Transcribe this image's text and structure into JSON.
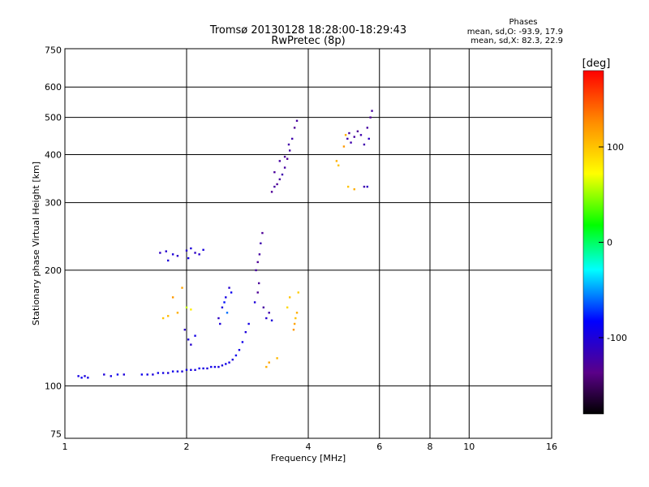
{
  "chart_data": {
    "type": "scatter",
    "title": "Tromsø 20130128 18:28:00-18:29:43",
    "subtitle": "RwPretec (8p)",
    "xlabel": "Frequency [MHz]",
    "ylabel": "Stationary phase Virtual Height [km]",
    "x_scale": "log",
    "y_scale": "log",
    "xlim": [
      1,
      16
    ],
    "ylim": [
      73,
      755
    ],
    "x_ticks": [
      "1",
      "2",
      "4",
      "6",
      "8",
      "10",
      "16"
    ],
    "x_tick_values": [
      1,
      2,
      4,
      6,
      8,
      10,
      16
    ],
    "y_ticks": [
      "75",
      "100",
      "200",
      "300",
      "400",
      "500",
      "600",
      "750"
    ],
    "y_tick_values": [
      75,
      100,
      200,
      300,
      400,
      500,
      600,
      750
    ],
    "grid": true,
    "phases_box": {
      "title": "Phases",
      "line1": "mean, sd,O: -93.9, 17.9",
      "line2": "mean, sd,X:  82.3, 22.9"
    },
    "colorbar": {
      "label": "[deg]",
      "min": -180,
      "max": 180,
      "ticks": [
        "100",
        "0",
        "-100"
      ],
      "tick_values": [
        100,
        0,
        -100
      ],
      "colors": [
        "#000000",
        "#5a0088",
        "#0000ff",
        "#00ffff",
        "#00ff00",
        "#ffff00",
        "#ff8c00",
        "#ff0000"
      ]
    },
    "series": [
      {
        "values_note": "",
        "points": [
          [
            1.08,
            106,
            -95
          ],
          [
            1.1,
            105,
            -90
          ],
          [
            1.12,
            106,
            -100
          ],
          [
            1.14,
            105,
            -95
          ],
          [
            1.25,
            107,
            -100
          ],
          [
            1.3,
            106,
            -95
          ],
          [
            1.35,
            107,
            -90
          ],
          [
            1.4,
            107,
            -100
          ],
          [
            1.55,
            107,
            -90
          ],
          [
            1.6,
            107,
            -95
          ],
          [
            1.65,
            107,
            -100
          ],
          [
            1.7,
            108,
            -92
          ],
          [
            1.75,
            108,
            -95
          ],
          [
            1.8,
            108,
            -100
          ],
          [
            1.85,
            109,
            -92
          ],
          [
            1.9,
            109,
            -95
          ],
          [
            1.95,
            109,
            -100
          ],
          [
            2.0,
            110,
            -93
          ],
          [
            2.05,
            110,
            -96
          ],
          [
            2.1,
            110,
            -100
          ],
          [
            2.15,
            111,
            -90
          ],
          [
            2.2,
            111,
            -95
          ],
          [
            2.25,
            111,
            -100
          ],
          [
            2.3,
            112,
            -92
          ],
          [
            2.35,
            112,
            -95
          ],
          [
            2.4,
            112,
            -98
          ],
          [
            2.45,
            113,
            -100
          ],
          [
            2.5,
            114,
            -92
          ],
          [
            2.55,
            115,
            -95
          ],
          [
            2.6,
            117,
            -100
          ],
          [
            2.65,
            120,
            -90
          ],
          [
            2.7,
            124,
            -95
          ],
          [
            2.75,
            130,
            -92
          ],
          [
            2.8,
            138,
            -100
          ],
          [
            2.85,
            145,
            -95
          ],
          [
            1.72,
            222,
            -110
          ],
          [
            1.78,
            224,
            -105
          ],
          [
            1.85,
            220,
            -100
          ],
          [
            1.9,
            218,
            -108
          ],
          [
            2.0,
            225,
            -105
          ],
          [
            2.05,
            228,
            -100
          ],
          [
            2.1,
            222,
            -110
          ],
          [
            2.15,
            220,
            -105
          ],
          [
            2.2,
            226,
            -98
          ],
          [
            1.8,
            212,
            -100
          ],
          [
            2.02,
            215,
            -95
          ],
          [
            1.75,
            150,
            100
          ],
          [
            1.8,
            152,
            105
          ],
          [
            1.9,
            155,
            110
          ],
          [
            2.0,
            160,
            60
          ],
          [
            2.05,
            158,
            80
          ],
          [
            1.85,
            170,
            120
          ],
          [
            1.95,
            180,
            115
          ],
          [
            1.98,
            140,
            -110
          ],
          [
            2.02,
            132,
            -100
          ],
          [
            2.05,
            128,
            -105
          ],
          [
            2.1,
            135,
            -95
          ],
          [
            2.4,
            150,
            -110
          ],
          [
            2.45,
            160,
            -100
          ],
          [
            2.5,
            170,
            -95
          ],
          [
            2.55,
            180,
            -105
          ],
          [
            2.58,
            175,
            -90
          ],
          [
            2.48,
            165,
            -80
          ],
          [
            2.52,
            155,
            -60
          ],
          [
            2.42,
            145,
            -100
          ],
          [
            2.97,
            200,
            -125
          ],
          [
            3.0,
            210,
            -130
          ],
          [
            3.03,
            220,
            -125
          ],
          [
            3.05,
            235,
            -120
          ],
          [
            3.08,
            250,
            -130
          ],
          [
            3.02,
            185,
            -128
          ],
          [
            3.0,
            175,
            -130
          ],
          [
            3.1,
            160,
            -125
          ],
          [
            3.2,
            155,
            -120
          ],
          [
            3.15,
            150,
            -105
          ],
          [
            3.25,
            148,
            -100
          ],
          [
            2.95,
            165,
            -100
          ],
          [
            3.25,
            320,
            -130
          ],
          [
            3.3,
            330,
            -125
          ],
          [
            3.35,
            335,
            -130
          ],
          [
            3.4,
            345,
            -125
          ],
          [
            3.45,
            355,
            -120
          ],
          [
            3.5,
            370,
            -125
          ],
          [
            3.55,
            390,
            -130
          ],
          [
            3.6,
            410,
            -125
          ],
          [
            3.65,
            440,
            -120
          ],
          [
            3.7,
            470,
            -130
          ],
          [
            3.75,
            490,
            -125
          ],
          [
            3.3,
            360,
            -128
          ],
          [
            3.4,
            385,
            -125
          ],
          [
            3.5,
            395,
            -130
          ],
          [
            3.58,
            425,
            -122
          ],
          [
            3.7,
            145,
            115
          ],
          [
            3.72,
            150,
            100
          ],
          [
            3.75,
            155,
            110
          ],
          [
            3.68,
            140,
            120
          ],
          [
            3.6,
            170,
            100
          ],
          [
            3.55,
            160,
            90
          ],
          [
            3.78,
            175,
            95
          ],
          [
            3.15,
            112,
            110
          ],
          [
            3.2,
            115,
            115
          ],
          [
            3.35,
            118,
            105
          ],
          [
            4.7,
            385,
            110
          ],
          [
            4.75,
            375,
            100
          ],
          [
            4.9,
            420,
            120
          ],
          [
            5.0,
            440,
            -120
          ],
          [
            5.05,
            455,
            -125
          ],
          [
            5.1,
            430,
            -120
          ],
          [
            5.2,
            445,
            -125
          ],
          [
            5.3,
            460,
            -130
          ],
          [
            5.4,
            450,
            -120
          ],
          [
            5.6,
            470,
            -125
          ],
          [
            5.7,
            500,
            -130
          ],
          [
            5.75,
            520,
            -125
          ],
          [
            5.5,
            425,
            -120
          ],
          [
            5.65,
            440,
            -110
          ],
          [
            4.95,
            450,
            110
          ],
          [
            5.02,
            330,
            100
          ],
          [
            5.2,
            325,
            110
          ],
          [
            5.5,
            330,
            -120
          ],
          [
            5.6,
            330,
            -110
          ]
        ]
      }
    ]
  }
}
